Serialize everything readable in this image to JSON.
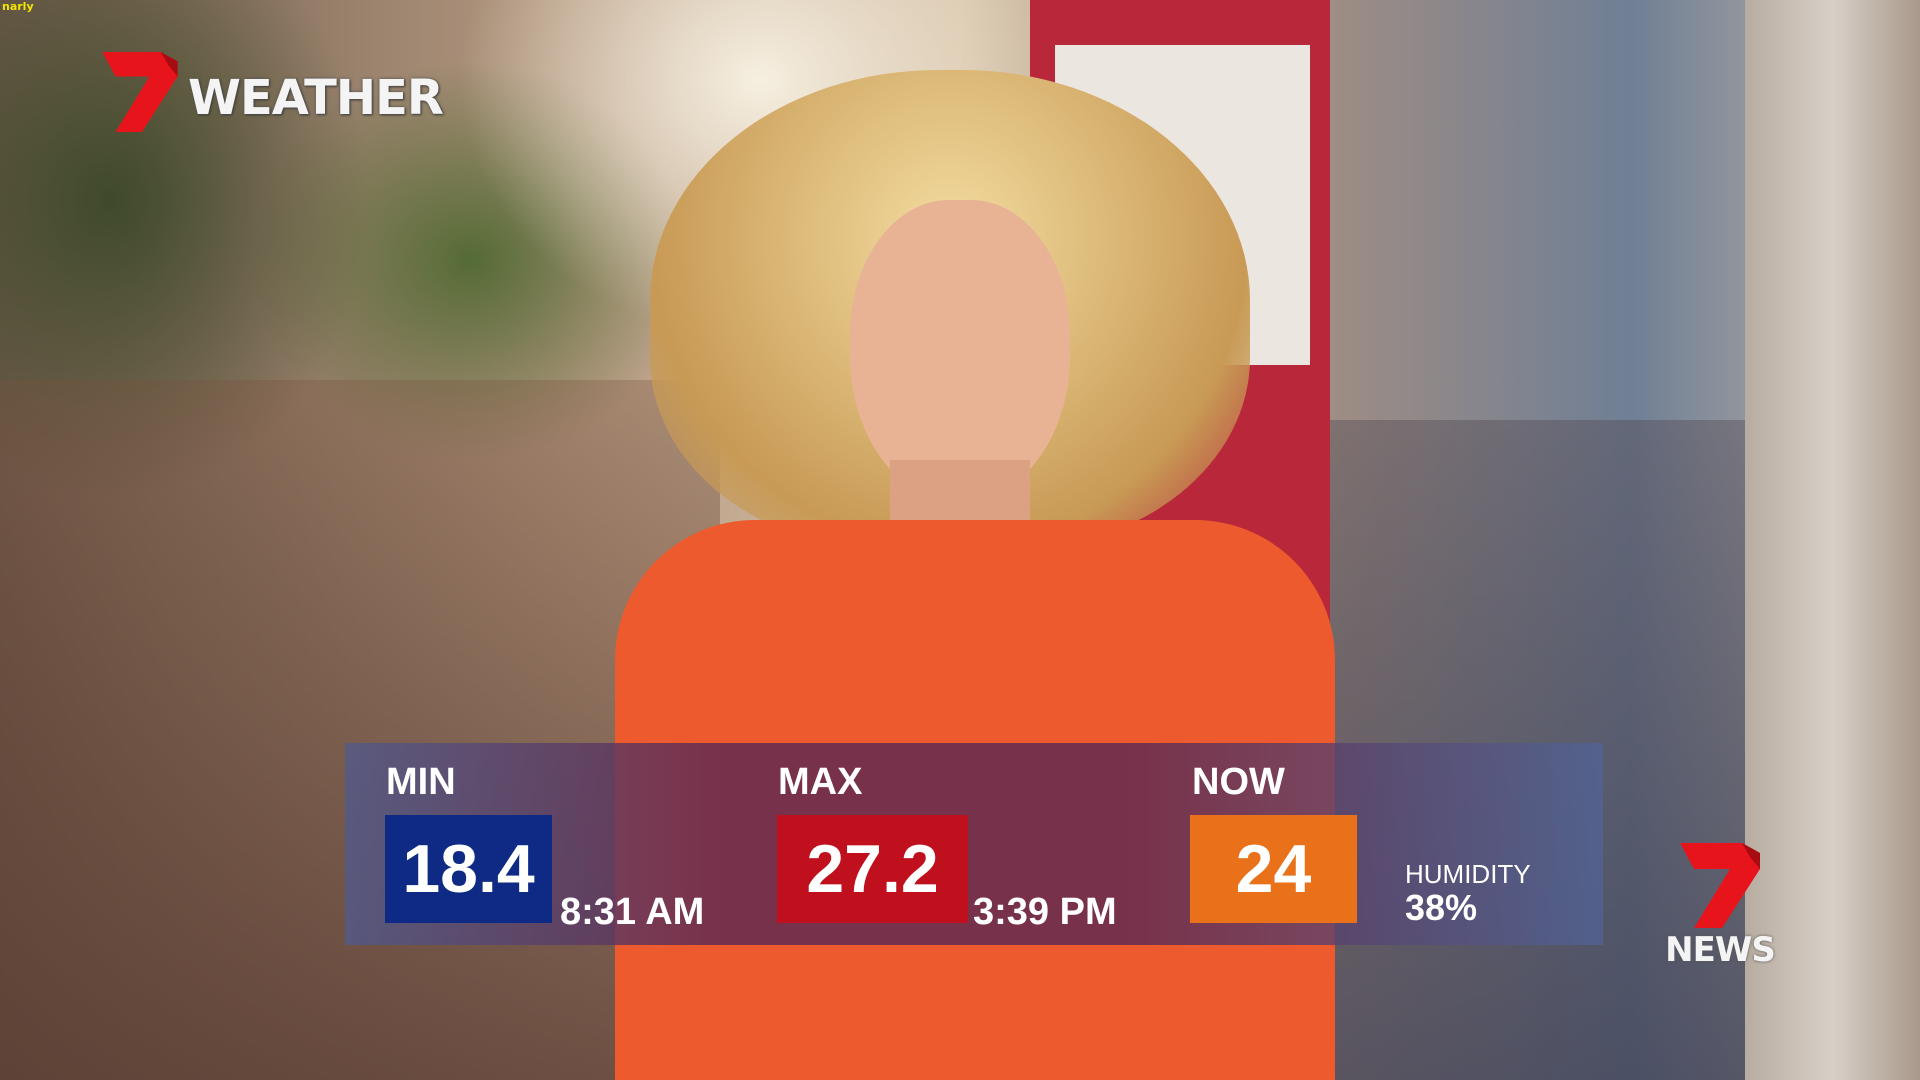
{
  "ticker_text": "narly",
  "brand": {
    "logo_numeral": "7",
    "weather_label": "WEATHER",
    "news_label": "NEWS",
    "logo_color": "#e8141c"
  },
  "weather": {
    "min": {
      "label": "MIN",
      "value": "18.4",
      "time": "8:31 AM",
      "color": "#0e2a84"
    },
    "max": {
      "label": "MAX",
      "value": "27.2",
      "time": "3:39 PM",
      "color": "#c0101e"
    },
    "now": {
      "label": "NOW",
      "value": "24",
      "color": "#e8711a"
    },
    "humidity": {
      "label": "HUMIDITY",
      "value": "38%"
    }
  }
}
